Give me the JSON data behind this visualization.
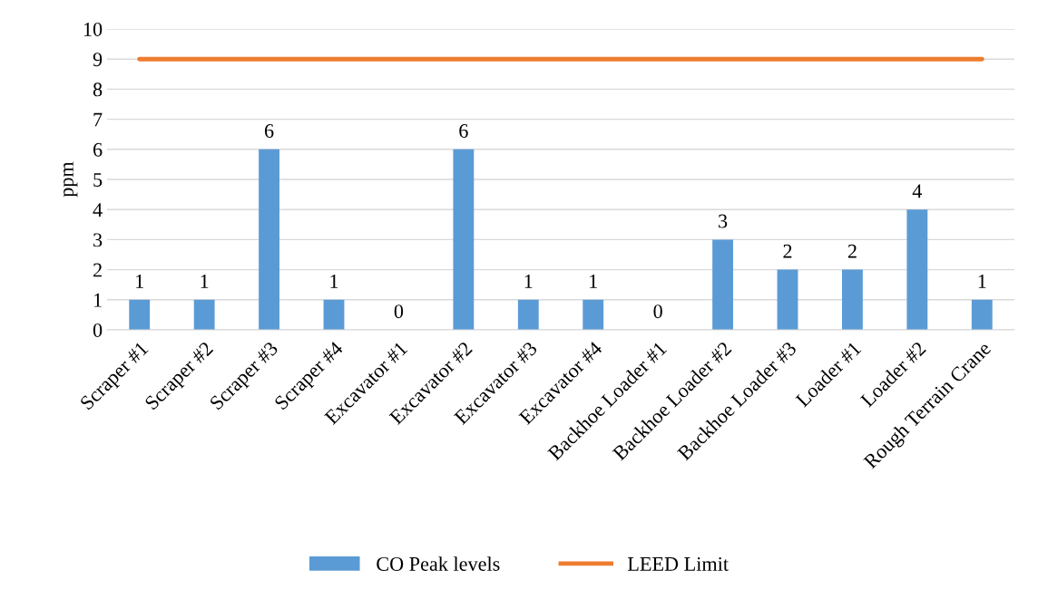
{
  "chart_data": {
    "type": "bar",
    "ylabel": "ppm",
    "categories": [
      "Scraper #1",
      "Scraper #2",
      "Scraper #3",
      "Scraper #4",
      "Excavator #1",
      "Excavator #2",
      "Excavator #3",
      "Excavator #4",
      "Backhoe Loader #1",
      "Backhoe Loader #2",
      "Backhoe Loader #3",
      "Loader #1",
      "Loader #2",
      "Rough Terrain Crane"
    ],
    "series": [
      {
        "name": "CO Peak levels",
        "color": "#5b9bd5",
        "values": [
          1,
          1,
          6,
          1,
          0,
          6,
          1,
          1,
          0,
          3,
          2,
          2,
          4,
          1
        ],
        "data_labels": true
      },
      {
        "name": "LEED Limit",
        "type": "line",
        "color": "#ed7d31",
        "values": [
          9,
          9,
          9,
          9,
          9,
          9,
          9,
          9,
          9,
          9,
          9,
          9,
          9,
          9
        ]
      }
    ],
    "ylim": [
      0,
      10
    ],
    "yticks": [
      0,
      1,
      2,
      3,
      4,
      5,
      6,
      7,
      8,
      9,
      10
    ],
    "grid": "y",
    "legend": "bottom"
  }
}
